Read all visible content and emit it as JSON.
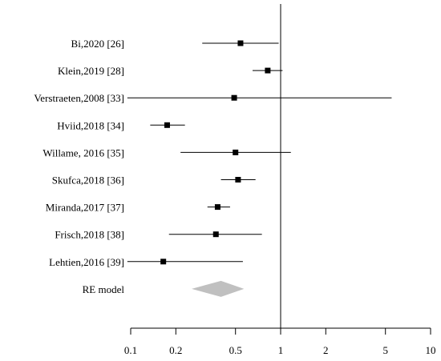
{
  "chart_data": {
    "type": "forest",
    "xscale": "log",
    "xlim": [
      0.1,
      10
    ],
    "xticks": [
      0.1,
      0.2,
      0.5,
      1,
      2,
      5,
      10
    ],
    "xtick_labels": [
      "0.1",
      "0.2",
      "0.5",
      "1",
      "2",
      "5",
      "10"
    ],
    "reference_line": 1,
    "grid": false,
    "studies": [
      {
        "label": "Bi,2020 [26]",
        "estimate": 0.54,
        "lower": 0.3,
        "upper": 0.97
      },
      {
        "label": "Klein,2019 [28]",
        "estimate": 0.82,
        "lower": 0.65,
        "upper": 1.03
      },
      {
        "label": "Verstraeten,2008 [33]",
        "estimate": 0.49,
        "lower": 0.095,
        "upper": 5.5
      },
      {
        "label": "Hviid,2018 [34]",
        "estimate": 0.175,
        "lower": 0.135,
        "upper": 0.23
      },
      {
        "label": "Willame, 2016 [35]",
        "estimate": 0.5,
        "lower": 0.215,
        "upper": 1.17
      },
      {
        "label": "Skufca,2018 [36]",
        "estimate": 0.52,
        "lower": 0.4,
        "upper": 0.68
      },
      {
        "label": "Miranda,2017 [37]",
        "estimate": 0.38,
        "lower": 0.325,
        "upper": 0.46
      },
      {
        "label": "Frisch,2018 [38]",
        "estimate": 0.37,
        "lower": 0.18,
        "upper": 0.75
      },
      {
        "label": "Lehtien,2016 [39]",
        "estimate": 0.165,
        "lower": 0.095,
        "upper": 0.56
      }
    ],
    "summary": {
      "label": "RE model",
      "estimate": 0.4,
      "lower": 0.255,
      "upper": 0.57,
      "color": "#c0c0c0"
    }
  }
}
